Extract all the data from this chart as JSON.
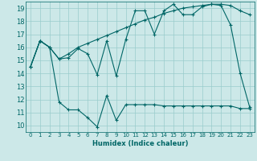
{
  "xlabel": "Humidex (Indice chaleur)",
  "bg_color": "#cce8e8",
  "grid_color": "#99cccc",
  "line_color": "#006666",
  "xlim": [
    -0.5,
    23.5
  ],
  "ylim": [
    9.5,
    19.5
  ],
  "xticks": [
    0,
    1,
    2,
    3,
    4,
    5,
    6,
    7,
    8,
    9,
    10,
    11,
    12,
    13,
    14,
    15,
    16,
    17,
    18,
    19,
    20,
    21,
    22,
    23
  ],
  "yticks": [
    10,
    11,
    12,
    13,
    14,
    15,
    16,
    17,
    18,
    19
  ],
  "line1_x": [
    0,
    1,
    2,
    3,
    4,
    5,
    6,
    7,
    8,
    9,
    10,
    11,
    12,
    13,
    14,
    15,
    16,
    17,
    18,
    19,
    20,
    21,
    22,
    23
  ],
  "line1_y": [
    14.5,
    16.5,
    16.0,
    15.1,
    15.2,
    15.9,
    15.5,
    13.9,
    16.5,
    13.8,
    16.6,
    18.8,
    18.8,
    17.0,
    18.8,
    19.3,
    18.5,
    18.5,
    19.1,
    19.3,
    19.2,
    17.7,
    14.0,
    11.4
  ],
  "line2_x": [
    0,
    1,
    2,
    3,
    4,
    5,
    6,
    7,
    8,
    9,
    10,
    11,
    12,
    13,
    14,
    15,
    16,
    17,
    18,
    19,
    20,
    21,
    22,
    23
  ],
  "line2_y": [
    14.5,
    16.5,
    16.0,
    11.8,
    11.2,
    11.2,
    10.6,
    9.9,
    12.3,
    10.4,
    11.6,
    11.6,
    11.6,
    11.6,
    11.5,
    11.5,
    11.5,
    11.5,
    11.5,
    11.5,
    11.5,
    11.5,
    11.3,
    11.3
  ],
  "line3_x": [
    0,
    1,
    2,
    3,
    4,
    5,
    6,
    7,
    8,
    9,
    10,
    11,
    12,
    13,
    14,
    15,
    16,
    17,
    18,
    19,
    20,
    21,
    22,
    23
  ],
  "line3_y": [
    14.5,
    16.5,
    16.0,
    15.1,
    15.5,
    16.0,
    16.3,
    16.6,
    16.9,
    17.2,
    17.5,
    17.8,
    18.1,
    18.3,
    18.6,
    18.8,
    19.0,
    19.1,
    19.2,
    19.3,
    19.3,
    19.2,
    18.8,
    18.5
  ]
}
